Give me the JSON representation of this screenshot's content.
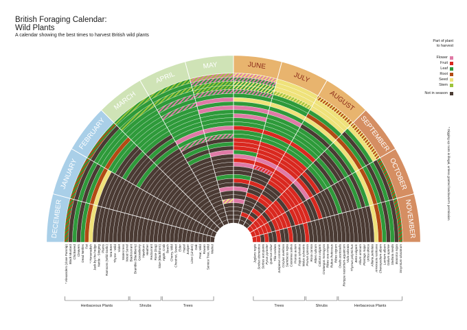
{
  "header": {
    "title_line1": "British Foraging Calendar:",
    "title_line2": "Wild Plants",
    "subtitle": "A calendar showing the best times to harvest British wild plants"
  },
  "legend": {
    "heading_line1": "Part of plant",
    "heading_line2": "to harvest",
    "items": [
      {
        "label": "Flower",
        "color": "#e07aa6"
      },
      {
        "label": "Fruit",
        "color": "#d9281f"
      },
      {
        "label": "Leaf",
        "color": "#2e9a3a"
      },
      {
        "label": "Root",
        "color": "#b24a14"
      },
      {
        "label": "Seed",
        "color": "#efe27a"
      },
      {
        "label": "Stem",
        "color": "#9dc43c"
      }
    ],
    "off_label": "Not in season",
    "off_color": "#4a3a33"
  },
  "side_note": "* Digging up roots is illegal, unless granted landowner's permission.",
  "colors": {
    "winter": "#a9cfe8",
    "spring": "#cfe3b6",
    "summer": "#e8b46e",
    "autumn": "#d58e62",
    "month_text": "#ffffff",
    "month_text_summer": "#8b2b1a",
    "month_text_autumn": "#ffffff"
  },
  "chart_data": {
    "type": "radial-calendar",
    "months": [
      "DECEMBER",
      "JANUARY",
      "FEBRUARY",
      "MARCH",
      "APRIL",
      "MAY",
      "JUNE",
      "JULY",
      "AUGUST",
      "SEPTEMBER",
      "OCTOBER",
      "NOVEMBER"
    ],
    "month_seasons": [
      "winter",
      "winter",
      "winter",
      "spring",
      "spring",
      "spring",
      "summer",
      "summer",
      "summer",
      "autumn",
      "autumn",
      "autumn"
    ],
    "left_plants": [
      "* Alexanders (close Parsnip)",
      "Black Mustard",
      "Chickweed",
      "Cleavers",
      "Dead Nettles",
      "Fat",
      "* Horseradish",
      "Jack-by-the-hedge",
      "Nettle - Stinging",
      "Plants",
      "Ramsons (Wild Garlic)",
      "Sea Beet",
      "Thyme - Wild",
      "Violet",
      "Watercress",
      "Wood Sorrel",
      "Blackcurrant",
      "Bramble (Blackberry)",
      "Gooseberry",
      "Hawthorn",
      "Heather",
      "Redcurrant",
      "Rose (Dog)",
      "Sloe (Blackthorn)",
      "Apple, Crab",
      "Beech",
      "Cherry, Wild",
      "Chestnut, Sweet",
      "Elder",
      "Hazel",
      "Juniper",
      "Lime (Linden)",
      "Oak",
      "Pear, Wild",
      "Rowan",
      "Service Tree, Wild",
      "Walnut"
    ],
    "right_plants": [
      "Juglans regia",
      "Sorbus domestica",
      "Sorbus aucuparia",
      "Pyrus pyraster",
      "Quercus robur",
      "Tilia cordata",
      "Juniperus communis",
      "Corylus avellana",
      "Sambucus nigra",
      "Castanea sativa",
      "Prunus avium",
      "Fagus sylvatica",
      "Malus sylvestris",
      "Prunus spinosa",
      "Rosa canina",
      "Ribes rubrum",
      "Calluna vulgaris",
      "Crataegus monogyna",
      "Ribes uva-crispa",
      "Rubus fruticosus",
      "Ribes nigrum",
      "Oxalis acetosella",
      "Rorippa nasturtium-aquaticum",
      "Viola odorata",
      "Thymus polytrichus",
      "Beta vulgaris",
      "Allium ursinum",
      "Plantago major",
      "Urtica dioica",
      "Alliaria petiolata",
      "Armoracia rusticana",
      "Chenopodium album",
      "Lamium album",
      "Galium aparine",
      "Stellaria media",
      "Brassica nigra",
      "Smyrnium olusatrum"
    ],
    "groups_left": [
      {
        "label": "Herbaceous Plants",
        "from": 0,
        "to": 15
      },
      {
        "label": "Shrubs",
        "from": 16,
        "to": 23
      },
      {
        "label": "Trees",
        "from": 24,
        "to": 36
      }
    ],
    "groups_right": [
      {
        "label": "Trees",
        "from": 0,
        "to": 12
      },
      {
        "label": "Shrubs",
        "from": 13,
        "to": 20
      },
      {
        "label": "Herbaceous Plants",
        "from": 21,
        "to": 36
      }
    ],
    "plant_types": [
      "Flower",
      "Fruit",
      "Leaf",
      "Root",
      "Seed",
      "Stem"
    ],
    "rings": [
      {
        "seg": [
          [
            "Leaf",
            "Root"
          ],
          [
            "Leaf",
            "Root"
          ],
          [
            "Leaf",
            "Root"
          ],
          [
            "Leaf",
            "Stem"
          ],
          [
            "Leaf",
            "Stem"
          ],
          [
            "Flower",
            "Stem"
          ],
          [
            "Flower",
            "Seed"
          ],
          [
            "Seed"
          ],
          [
            "Seed",
            "Root"
          ],
          [
            "Seed",
            "Root"
          ],
          [
            "Root",
            "Leaf"
          ],
          [
            "Leaf",
            "Root"
          ]
        ]
      },
      {
        "seg": [
          [],
          [],
          [],
          [
            "Leaf"
          ],
          [
            "Leaf"
          ],
          [
            "Flower",
            "Leaf"
          ],
          [
            "Flower",
            "Leaf"
          ],
          [
            "Seed"
          ],
          [
            "Seed"
          ],
          [
            "Seed"
          ],
          [],
          []
        ]
      },
      {
        "seg": [
          [
            "Leaf"
          ],
          [
            "Leaf"
          ],
          [
            "Leaf"
          ],
          [
            "Leaf",
            "Stem"
          ],
          [
            "Leaf",
            "Stem"
          ],
          [
            "Leaf",
            "Stem"
          ],
          [
            "Leaf",
            "Seed"
          ],
          [
            "Seed"
          ],
          [
            "Seed"
          ],
          [
            "Leaf"
          ],
          [
            "Leaf"
          ],
          [
            "Leaf"
          ]
        ]
      },
      {
        "seg": [
          [],
          [],
          [
            "Leaf"
          ],
          [
            "Leaf"
          ],
          [
            "Leaf"
          ],
          [
            "Leaf",
            "Stem"
          ],
          [
            "Leaf",
            "Seed"
          ],
          [
            "Seed",
            "Stem"
          ],
          [
            "Seed"
          ],
          [],
          [],
          []
        ]
      },
      {
        "seg": [
          [
            "Leaf"
          ],
          [
            "Leaf"
          ],
          [
            "Leaf"
          ],
          [
            "Leaf"
          ],
          [
            "Leaf",
            "Flower"
          ],
          [
            "Flower",
            "Leaf"
          ],
          [
            "Flower",
            "Leaf"
          ],
          [
            "Leaf"
          ],
          [
            "Leaf"
          ],
          [
            "Leaf"
          ],
          [
            "Leaf"
          ],
          [
            "Leaf"
          ]
        ]
      },
      {
        "seg": [
          [
            "Root"
          ],
          [
            "Root"
          ],
          [
            "Root"
          ],
          [
            "Leaf"
          ],
          [
            "Leaf"
          ],
          [
            "Leaf"
          ],
          [
            "Leaf"
          ],
          [
            "Leaf"
          ],
          [
            "Root"
          ],
          [
            "Root"
          ],
          [
            "Root"
          ],
          [
            "Root"
          ]
        ]
      },
      {
        "seg": [
          [
            "Seed"
          ],
          [
            "Seed"
          ],
          [
            "Leaf"
          ],
          [
            "Leaf"
          ],
          [
            "Leaf",
            "Flower"
          ],
          [
            "Flower"
          ],
          [
            "Seed"
          ],
          [
            "Seed"
          ],
          [
            "Seed"
          ],
          [
            "Seed"
          ],
          [
            "Seed"
          ],
          [
            "Seed"
          ]
        ]
      },
      {
        "seg": [
          [],
          [],
          [
            "Leaf"
          ],
          [
            "Leaf"
          ],
          [
            "Leaf"
          ],
          [
            "Leaf"
          ],
          [
            "Leaf"
          ],
          [
            "Leaf"
          ],
          [
            "Leaf"
          ],
          [
            "Leaf"
          ],
          [
            "Leaf"
          ],
          []
        ]
      },
      {
        "seg": [
          [],
          [],
          [],
          [
            "Leaf"
          ],
          [
            "Leaf"
          ],
          [
            "Flower"
          ],
          [
            "Flower"
          ],
          [
            "Flower"
          ],
          [],
          [],
          [],
          []
        ]
      },
      {
        "seg": [
          [],
          [],
          [],
          [
            "Leaf"
          ],
          [
            "Leaf"
          ],
          [
            "Leaf"
          ],
          [
            "Leaf"
          ],
          [
            "Leaf"
          ],
          [
            "Leaf"
          ],
          [
            "Leaf"
          ],
          [
            "Leaf"
          ],
          []
        ]
      },
      {
        "seg": [
          [],
          [],
          [
            "Leaf"
          ],
          [
            "Leaf"
          ],
          [
            "Leaf"
          ],
          [
            "Leaf"
          ],
          [
            "Flower"
          ],
          [
            "Leaf"
          ],
          [
            "Leaf"
          ],
          [],
          [],
          []
        ]
      },
      {
        "seg": [
          [],
          [],
          [],
          [],
          [
            "Leaf"
          ],
          [
            "Leaf"
          ],
          [
            "Leaf"
          ],
          [
            "Leaf"
          ],
          [
            "Leaf"
          ],
          [],
          [],
          []
        ]
      },
      {
        "seg": [
          [],
          [],
          [],
          [
            "Leaf"
          ],
          [
            "Leaf"
          ],
          [
            "Leaf"
          ],
          [
            "Leaf"
          ],
          [
            "Leaf"
          ],
          [
            "Leaf"
          ],
          [
            "Leaf"
          ],
          [],
          []
        ]
      },
      {
        "seg": [
          [],
          [],
          [],
          [],
          [
            "Flower"
          ],
          [
            "Flower"
          ],
          [
            "Fruit"
          ],
          [
            "Fruit"
          ],
          [
            "Fruit"
          ],
          [],
          [],
          []
        ]
      },
      {
        "seg": [
          [],
          [],
          [
            "Leaf"
          ],
          [
            "Leaf"
          ],
          [
            "Leaf"
          ],
          [
            "Leaf"
          ],
          [
            "Leaf"
          ],
          [
            "Leaf"
          ],
          [
            "Leaf"
          ],
          [
            "Leaf"
          ],
          [
            "Leaf"
          ],
          []
        ]
      },
      {
        "seg": [
          [],
          [],
          [],
          [],
          [
            "Leaf",
            "Flower"
          ],
          [
            "Leaf",
            "Flower"
          ],
          [
            "Leaf"
          ],
          [
            "Leaf"
          ],
          [
            "Leaf"
          ],
          [
            "Leaf"
          ],
          [],
          []
        ]
      },
      {
        "seg": [
          [],
          [],
          [],
          [],
          [],
          [],
          [
            "Fruit"
          ],
          [
            "Fruit"
          ],
          [
            "Fruit"
          ],
          [],
          [],
          []
        ]
      },
      {
        "seg": [
          [],
          [],
          [],
          [],
          [
            "Leaf"
          ],
          [
            "Leaf"
          ],
          [
            "Fruit"
          ],
          [
            "Fruit"
          ],
          [
            "Fruit"
          ],
          [
            "Fruit"
          ],
          [],
          []
        ]
      },
      {
        "seg": [
          [],
          [],
          [],
          [],
          [],
          [],
          [
            "Fruit"
          ],
          [
            "Fruit"
          ],
          [
            "Fruit"
          ],
          [],
          [],
          []
        ]
      },
      {
        "seg": [
          [],
          [],
          [],
          [],
          [
            "Leaf"
          ],
          [
            "Flower"
          ],
          [
            "Leaf"
          ],
          [
            "Fruit"
          ],
          [
            "Fruit"
          ],
          [
            "Fruit"
          ],
          [
            "Fruit"
          ],
          []
        ]
      },
      {
        "seg": [
          [],
          [],
          [],
          [],
          [],
          [],
          [
            "Flower"
          ],
          [
            "Flower"
          ],
          [
            "Flower"
          ],
          [
            "Flower"
          ],
          [],
          []
        ]
      },
      {
        "seg": [
          [],
          [],
          [],
          [],
          [],
          [],
          [
            "Fruit"
          ],
          [
            "Fruit"
          ],
          [
            "Fruit"
          ],
          [],
          [],
          []
        ]
      },
      {
        "seg": [
          [],
          [],
          [],
          [],
          [],
          [],
          [
            "Flower"
          ],
          [
            "Flower",
            "Fruit"
          ],
          [
            "Fruit"
          ],
          [
            "Fruit"
          ],
          [
            "Fruit"
          ],
          []
        ]
      },
      {
        "seg": [
          [],
          [],
          [],
          [],
          [],
          [],
          [],
          [],
          [
            "Fruit"
          ],
          [
            "Fruit"
          ],
          [
            "Fruit"
          ],
          [
            "Fruit"
          ]
        ]
      },
      {
        "seg": [
          [],
          [],
          [],
          [],
          [],
          [],
          [],
          [],
          [
            "Fruit"
          ],
          [
            "Fruit"
          ],
          [
            "Fruit"
          ],
          []
        ]
      },
      {
        "seg": [
          [],
          [],
          [],
          [],
          [],
          [
            "Leaf"
          ],
          [
            "Leaf"
          ],
          [],
          [],
          [
            "Fruit"
          ],
          [
            "Fruit"
          ],
          []
        ]
      },
      {
        "seg": [
          [],
          [],
          [],
          [],
          [],
          [],
          [
            "Fruit"
          ],
          [
            "Fruit"
          ],
          [],
          [],
          [],
          []
        ]
      },
      {
        "seg": [
          [],
          [],
          [],
          [],
          [],
          [],
          [],
          [],
          [],
          [
            "Fruit"
          ],
          [
            "Fruit"
          ],
          [
            "Fruit"
          ]
        ]
      },
      {
        "seg": [
          [],
          [],
          [],
          [],
          [],
          [
            "Flower"
          ],
          [
            "Flower"
          ],
          [],
          [
            "Fruit"
          ],
          [
            "Fruit"
          ],
          [
            "Fruit"
          ],
          []
        ]
      },
      {
        "seg": [
          [],
          [],
          [],
          [],
          [],
          [],
          [],
          [
            "Fruit"
          ],
          [
            "Fruit"
          ],
          [
            "Fruit"
          ],
          [
            "Fruit"
          ],
          []
        ]
      },
      {
        "seg": [
          [],
          [],
          [],
          [],
          [],
          [],
          [],
          [],
          [],
          [
            "Fruit"
          ],
          [
            "Fruit"
          ],
          [
            "Fruit"
          ]
        ]
      },
      {
        "seg": [
          [],
          [],
          [],
          [],
          [],
          [
            "Seed",
            "Flower"
          ],
          [
            "Flower"
          ],
          [],
          [],
          [],
          [],
          []
        ]
      },
      {
        "seg": [
          [],
          [],
          [],
          [],
          [],
          [],
          [],
          [],
          [
            "Fruit"
          ],
          [
            "Fruit"
          ],
          [
            "Fruit"
          ],
          []
        ]
      },
      {
        "seg": [
          [],
          [],
          [],
          [],
          [],
          [],
          [],
          [],
          [],
          [
            "Fruit"
          ],
          [
            "Fruit"
          ],
          [
            "Fruit"
          ]
        ]
      },
      {
        "seg": [
          [],
          [],
          [],
          [],
          [],
          [],
          [],
          [
            "Fruit"
          ],
          [
            "Fruit"
          ],
          [
            "Fruit"
          ],
          [
            "Fruit"
          ],
          []
        ]
      },
      {
        "seg": [
          [],
          [],
          [],
          [],
          [],
          [],
          [],
          [],
          [],
          [
            "Fruit"
          ],
          [
            "Fruit"
          ],
          [
            "Fruit"
          ]
        ]
      },
      {
        "seg": [
          [],
          [],
          [],
          [],
          [],
          [],
          [],
          [],
          [],
          [
            "Fruit"
          ],
          [
            "Fruit"
          ],
          [
            "Fruit"
          ]
        ]
      }
    ]
  }
}
